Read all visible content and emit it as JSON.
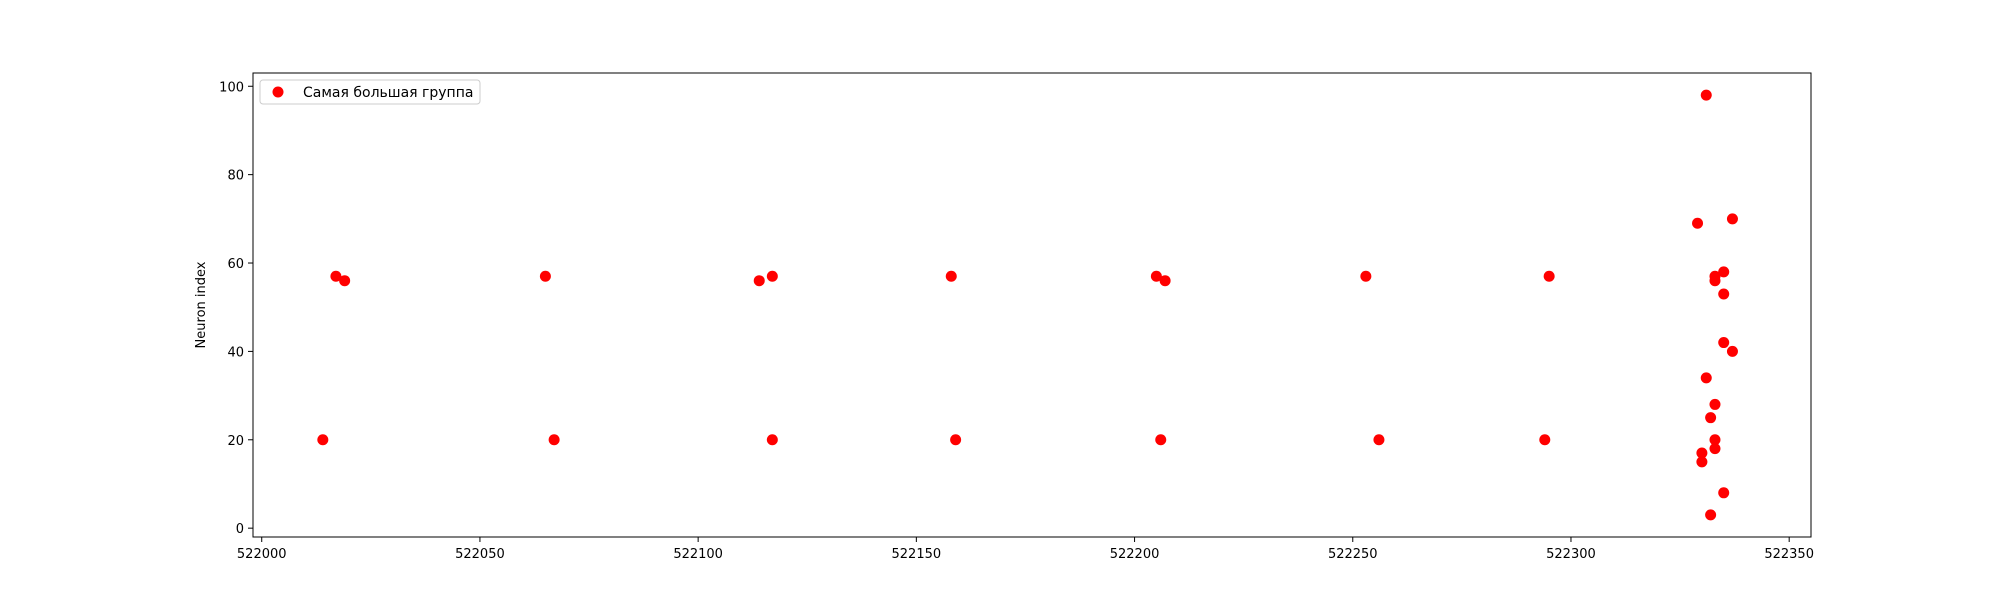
{
  "chart_data": {
    "type": "scatter",
    "title": "",
    "xlabel": "",
    "ylabel": "Neuron index",
    "xlim": [
      521998,
      522355
    ],
    "ylim": [
      -2,
      103
    ],
    "x_ticks": [
      522000,
      522050,
      522100,
      522150,
      522200,
      522250,
      522300,
      522350
    ],
    "y_ticks": [
      0,
      20,
      40,
      60,
      80,
      100
    ],
    "grid": false,
    "legend_position": "top-left",
    "series": [
      {
        "name": "Самая большая группа",
        "color": "#ff0000",
        "marker": "circle",
        "points": [
          {
            "x": 522014,
            "y": 20
          },
          {
            "x": 522017,
            "y": 57
          },
          {
            "x": 522019,
            "y": 56
          },
          {
            "x": 522065,
            "y": 57
          },
          {
            "x": 522067,
            "y": 20
          },
          {
            "x": 522114,
            "y": 56
          },
          {
            "x": 522117,
            "y": 57
          },
          {
            "x": 522117,
            "y": 20
          },
          {
            "x": 522158,
            "y": 57
          },
          {
            "x": 522159,
            "y": 20
          },
          {
            "x": 522205,
            "y": 57
          },
          {
            "x": 522207,
            "y": 56
          },
          {
            "x": 522206,
            "y": 20
          },
          {
            "x": 522253,
            "y": 57
          },
          {
            "x": 522256,
            "y": 20
          },
          {
            "x": 522295,
            "y": 57
          },
          {
            "x": 522294,
            "y": 20
          },
          {
            "x": 522329,
            "y": 69
          },
          {
            "x": 522330,
            "y": 15
          },
          {
            "x": 522330,
            "y": 17
          },
          {
            "x": 522331,
            "y": 98
          },
          {
            "x": 522331,
            "y": 34
          },
          {
            "x": 522332,
            "y": 25
          },
          {
            "x": 522332,
            "y": 3
          },
          {
            "x": 522333,
            "y": 57
          },
          {
            "x": 522333,
            "y": 56
          },
          {
            "x": 522333,
            "y": 28
          },
          {
            "x": 522333,
            "y": 20
          },
          {
            "x": 522333,
            "y": 18
          },
          {
            "x": 522335,
            "y": 58
          },
          {
            "x": 522335,
            "y": 53
          },
          {
            "x": 522335,
            "y": 42
          },
          {
            "x": 522335,
            "y": 8
          },
          {
            "x": 522337,
            "y": 70
          },
          {
            "x": 522337,
            "y": 40
          }
        ]
      }
    ]
  }
}
